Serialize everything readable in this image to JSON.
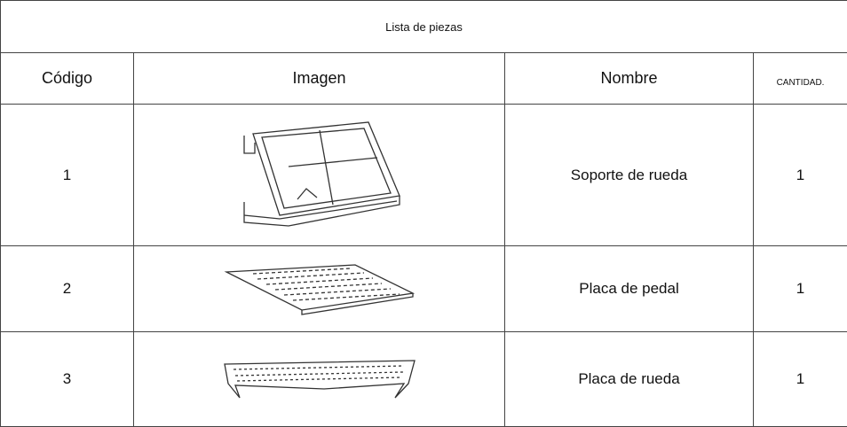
{
  "table": {
    "title": "Lista de piezas",
    "header": [
      "Código",
      "Imagen",
      "Nombre",
      "CANTIDAD."
    ],
    "rows": [
      {
        "code": 1,
        "name": "Soporte de rueda",
        "qty": 1
      },
      {
        "code": 2,
        "name": "Placa de pedal",
        "qty": 1
      },
      {
        "code": 3,
        "name": "Placa de rueda",
        "qty": 1
      }
    ]
  }
}
